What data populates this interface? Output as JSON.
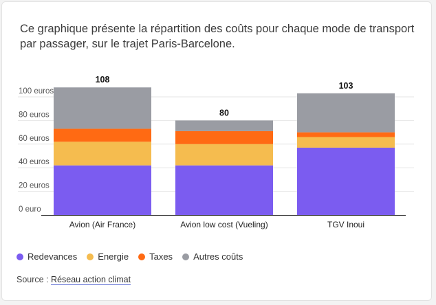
{
  "description": "Ce graphique présente la répartition des coûts pour chaque mode de transport par passager, sur le trajet Paris-Barcelone.",
  "chart_data": {
    "type": "bar",
    "stacked": true,
    "categories": [
      "Avion (Air France)",
      "Avion low cost (Vueling)",
      "TGV Inoui"
    ],
    "series": [
      {
        "name": "Redevances",
        "color": "#7b5cf0",
        "values": [
          42,
          42,
          57
        ]
      },
      {
        "name": "Energie",
        "color": "#f5bc4f",
        "values": [
          20,
          18,
          9
        ]
      },
      {
        "name": "Taxes",
        "color": "#ff6a13",
        "values": [
          11,
          11,
          4
        ]
      },
      {
        "name": "Autres coûts",
        "color": "#9a9ca3",
        "values": [
          35,
          9,
          33
        ]
      }
    ],
    "totals": [
      "108",
      "80",
      "103"
    ],
    "ylim": [
      0,
      100
    ],
    "yticks": [
      0,
      20,
      40,
      60,
      80,
      100
    ],
    "ytick_labels": [
      "0 euro",
      "20 euros",
      "40 euros",
      "60 euros",
      "80 euros",
      "100 euros"
    ],
    "grid": true,
    "legend_position": "bottom"
  },
  "source": {
    "label": "Source :",
    "link_text": "Réseau action climat"
  }
}
